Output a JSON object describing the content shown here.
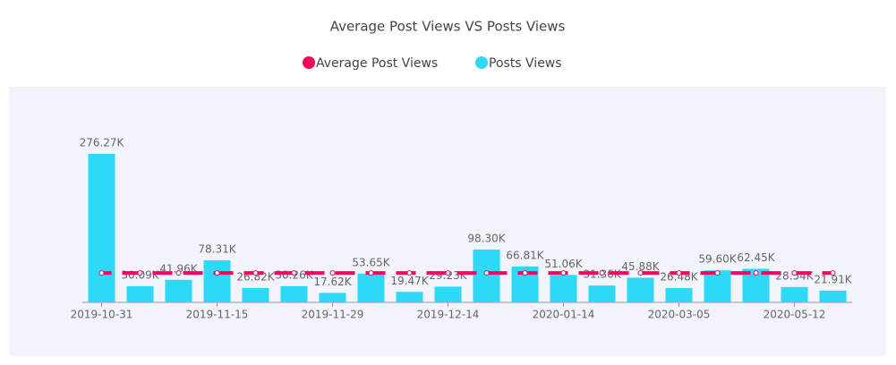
{
  "chart_data": {
    "type": "bar",
    "title": "Average Post Views VS Posts Views",
    "categories": [
      "2019-10-31",
      null,
      null,
      "2019-11-15",
      null,
      null,
      "2019-11-29",
      null,
      null,
      "2019-12-14",
      null,
      null,
      "2020-01-14",
      null,
      null,
      "2020-03-05",
      null,
      null,
      "2020-05-12",
      null
    ],
    "series": [
      {
        "name": "Average Post Views",
        "color": "#f0075f",
        "type": "line",
        "values": [
          54800,
          54800,
          54800,
          54800,
          54800,
          54800,
          54800,
          54800,
          54800,
          54800,
          54800,
          54800,
          54800,
          54800,
          54800,
          54800,
          54800,
          54800,
          54800,
          54800
        ]
      },
      {
        "name": "Posts Views",
        "color": "#2dd9f5",
        "type": "bar",
        "values": [
          276270,
          30090,
          41960,
          78310,
          26820,
          30260,
          17620,
          53650,
          19470,
          29230,
          98300,
          66810,
          51060,
          31360,
          45880,
          26480,
          59600,
          62450,
          28540,
          21910
        ],
        "value_labels": [
          "276.27K",
          "30.09K",
          "41.96K",
          "78.31K",
          "26.82K",
          "30.26K",
          "17.62K",
          "53.65K",
          "19.47K",
          "29.23K",
          "98.30K",
          "66.81K",
          "51.06K",
          "31.36K",
          "45.88K",
          "26.48K",
          "59.60K",
          "62.45K",
          "28.54K",
          "21.91K"
        ]
      }
    ]
  }
}
